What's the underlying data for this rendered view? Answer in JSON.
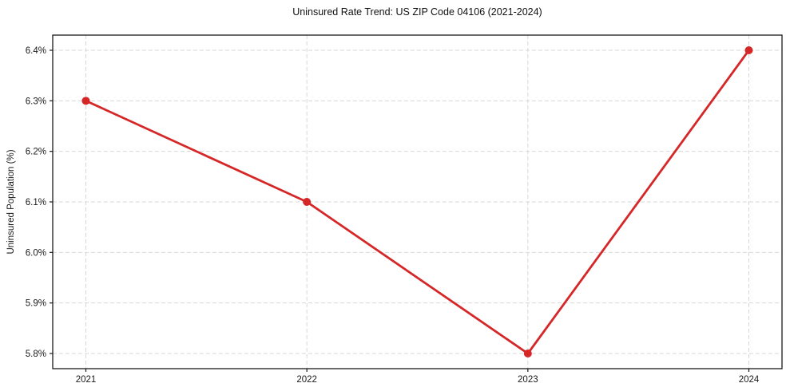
{
  "chart_data": {
    "type": "line",
    "title": "Uninsured Rate Trend: US ZIP Code 04106 (2021-2024)",
    "xlabel": "",
    "ylabel": "Uninsured Population (%)",
    "x": [
      2021,
      2022,
      2023,
      2024
    ],
    "values": [
      6.3,
      6.1,
      5.8,
      6.4
    ],
    "x_tick_labels": [
      "2021",
      "2022",
      "2023",
      "2024"
    ],
    "y_tick_values": [
      5.8,
      5.9,
      6.0,
      6.1,
      6.2,
      6.3,
      6.4
    ],
    "y_tick_labels": [
      "5.8%",
      "5.9%",
      "6.0%",
      "6.1%",
      "6.2%",
      "6.3%",
      "6.4%"
    ],
    "xlim": [
      2020.85,
      2024.15
    ],
    "ylim": [
      5.77,
      6.43
    ],
    "grid": true,
    "legend_position": "none",
    "line_color": "#d62728",
    "marker": "circle"
  }
}
